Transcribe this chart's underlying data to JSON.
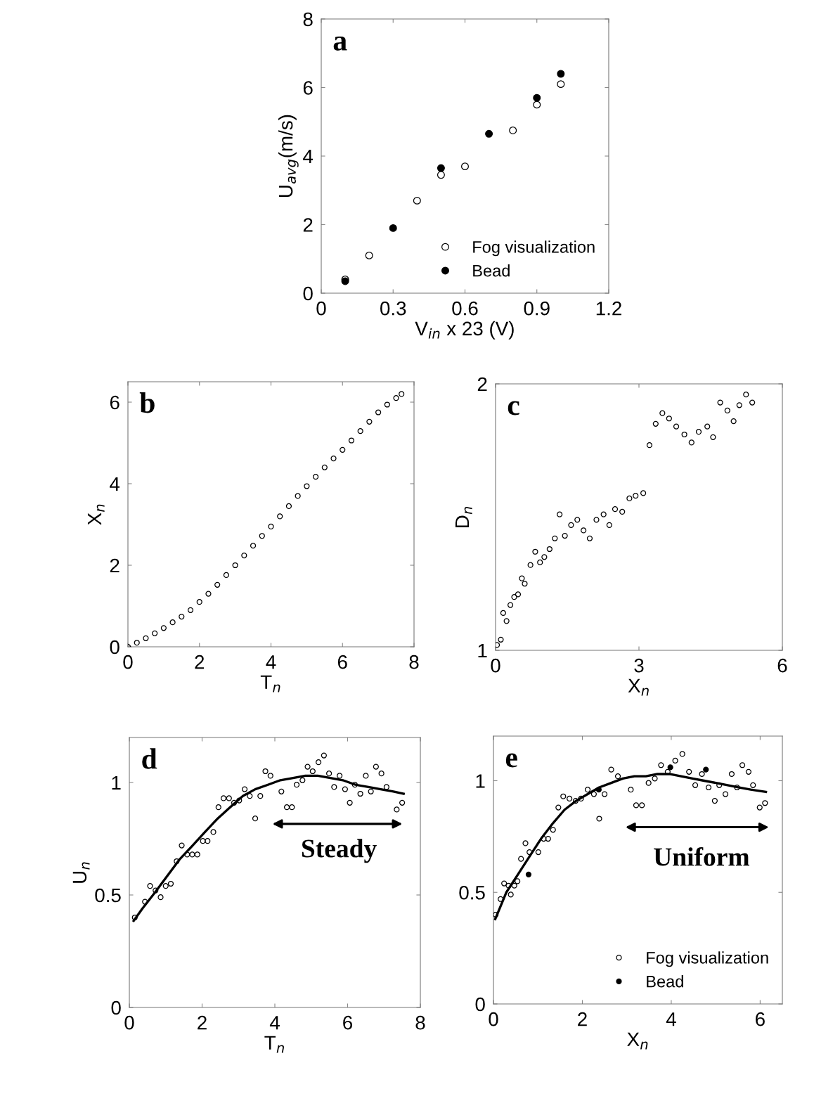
{
  "chart_data": [
    {
      "type": "scatter",
      "title": "a",
      "xlabel": "V$_{in}$ x 23 (V)",
      "ylabel": "U$_{avg}$(m/s)",
      "xlim": [
        0,
        1.2
      ],
      "ylim": [
        0,
        8
      ],
      "xticks": [
        0,
        0.3,
        0.6,
        0.9,
        1.2
      ],
      "yticks": [
        0,
        2,
        4,
        6,
        8
      ],
      "grid": false,
      "legend": "bottom right",
      "marker": "circle",
      "series": [
        {
          "name": "Fog visualization",
          "color": "#000000",
          "x": [
            0.1,
            0.2,
            0.4,
            0.5,
            0.6,
            0.8,
            0.9,
            1.0
          ],
          "values": [
            0.4,
            1.1,
            2.7,
            3.45,
            3.7,
            4.75,
            5.5,
            6.1
          ]
        },
        {
          "name": "Bead",
          "color": "#000000",
          "x": [
            0.1,
            0.3,
            0.5,
            0.7,
            0.9,
            1.0
          ],
          "values": [
            0.35,
            1.9,
            3.65,
            4.65,
            5.7,
            6.4
          ]
        }
      ]
    },
    {
      "type": "scatter",
      "title": "b",
      "xlabel": "T$_{n}$",
      "ylabel": "X$_{n}$",
      "xlim": [
        0,
        8
      ],
      "ylim": [
        0,
        6.5
      ],
      "xticks": [
        0,
        2,
        4,
        6,
        8
      ],
      "yticks": [
        0,
        2,
        4,
        6
      ],
      "grid": false,
      "marker": "circle",
      "series": [
        {
          "color": "#000000",
          "x": [
            0,
            0.25,
            0.5,
            0.75,
            1.0,
            1.25,
            1.5,
            1.75,
            2.0,
            2.25,
            2.5,
            2.75,
            3.0,
            3.25,
            3.5,
            3.75,
            4.0,
            4.25,
            4.5,
            4.75,
            5.0,
            5.25,
            5.5,
            5.75,
            6.0,
            6.25,
            6.5,
            6.75,
            7.0,
            7.25,
            7.5,
            7.65
          ],
          "values": [
            0,
            0.1,
            0.21,
            0.33,
            0.46,
            0.6,
            0.74,
            0.9,
            1.1,
            1.3,
            1.52,
            1.76,
            2.0,
            2.24,
            2.48,
            2.72,
            2.95,
            3.2,
            3.45,
            3.7,
            3.94,
            4.17,
            4.4,
            4.62,
            4.83,
            5.06,
            5.29,
            5.52,
            5.75,
            5.94,
            6.1,
            6.2
          ]
        }
      ]
    },
    {
      "type": "scatter",
      "title": "c",
      "xlabel": "X$_{n}$",
      "ylabel": "D$_{n}$",
      "xlim": [
        0,
        6
      ],
      "ylim": [
        1,
        2
      ],
      "xticks": [
        0,
        3,
        6
      ],
      "yticks": [
        1,
        2
      ],
      "grid": false,
      "marker": "circle",
      "series": [
        {
          "color": "#000000",
          "x": [
            0.03,
            0.11,
            0.16,
            0.23,
            0.31,
            0.39,
            0.47,
            0.55,
            0.61,
            0.73,
            0.83,
            0.93,
            1.02,
            1.13,
            1.24,
            1.34,
            1.45,
            1.58,
            1.71,
            1.84,
            1.97,
            2.11,
            2.26,
            2.38,
            2.5,
            2.65,
            2.8,
            2.93,
            3.09,
            3.22,
            3.35,
            3.49,
            3.63,
            3.78,
            3.95,
            4.1,
            4.25,
            4.43,
            4.55,
            4.7,
            4.85,
            4.98,
            5.1,
            5.24,
            5.37
          ],
          "values": [
            1.02,
            1.04,
            1.14,
            1.11,
            1.17,
            1.2,
            1.21,
            1.27,
            1.25,
            1.32,
            1.37,
            1.33,
            1.35,
            1.38,
            1.42,
            1.51,
            1.43,
            1.47,
            1.49,
            1.45,
            1.42,
            1.49,
            1.51,
            1.47,
            1.53,
            1.52,
            1.57,
            1.58,
            1.59,
            1.77,
            1.85,
            1.89,
            1.87,
            1.84,
            1.81,
            1.78,
            1.82,
            1.84,
            1.8,
            1.93,
            1.9,
            1.86,
            1.92,
            1.96,
            1.93
          ]
        }
      ]
    },
    {
      "type": "scatter",
      "title": "d",
      "xlabel": "T$_{n}$",
      "ylabel": "U$_{n}$",
      "xlim": [
        0,
        8
      ],
      "ylim": [
        0,
        1.2
      ],
      "xticks": [
        0,
        2,
        4,
        6,
        8
      ],
      "yticks": [
        0,
        0.5,
        1
      ],
      "grid": false,
      "marker": "circle",
      "annotations": [
        "Steady"
      ],
      "series": [
        {
          "color": "#000000",
          "x": [
            0.15,
            0.43,
            0.57,
            0.72,
            0.86,
            1.0,
            1.14,
            1.3,
            1.44,
            1.59,
            1.73,
            1.87,
            2.02,
            2.15,
            2.31,
            2.45,
            2.59,
            2.74,
            2.88,
            3.02,
            3.17,
            3.31,
            3.46,
            3.6,
            3.74,
            3.88,
            4.18,
            4.33,
            4.47,
            4.6,
            4.76,
            4.9,
            5.04,
            5.2,
            5.35,
            5.49,
            5.63,
            5.78,
            5.93,
            6.06,
            6.2,
            6.35,
            6.5,
            6.64,
            6.78,
            6.93,
            7.07,
            7.35,
            7.5
          ],
          "values": [
            0.4,
            0.47,
            0.54,
            0.52,
            0.49,
            0.54,
            0.55,
            0.65,
            0.72,
            0.68,
            0.68,
            0.68,
            0.74,
            0.74,
            0.78,
            0.89,
            0.93,
            0.93,
            0.91,
            0.92,
            0.97,
            0.94,
            0.84,
            0.94,
            1.05,
            1.03,
            0.96,
            0.89,
            0.89,
            0.99,
            1.01,
            1.07,
            1.05,
            1.09,
            1.12,
            1.04,
            0.98,
            1.03,
            0.97,
            0.91,
            0.99,
            0.95,
            1.03,
            0.96,
            1.07,
            1.04,
            0.98,
            0.88,
            0.91
          ]
        },
        {
          "type": "line",
          "color": "#000000",
          "line_style": "solid",
          "marker": "none",
          "x": [
            0.12,
            0.36,
            0.7,
            1.39,
            1.74,
            2.08,
            2.43,
            2.77,
            3.12,
            3.46,
            3.81,
            4.15,
            4.5,
            4.84,
            5.18,
            5.53,
            5.87,
            6.22,
            6.57,
            6.91,
            7.26,
            7.54
          ],
          "values": [
            0.385,
            0.44,
            0.51,
            0.66,
            0.72,
            0.78,
            0.84,
            0.89,
            0.94,
            0.97,
            0.99,
            1.01,
            1.02,
            1.03,
            1.03,
            1.02,
            1.01,
            0.99,
            0.98,
            0.97,
            0.96,
            0.95
          ]
        }
      ]
    },
    {
      "type": "scatter",
      "title": "e",
      "xlabel": "X$_{n}$",
      "xlim": [
        0,
        6.5
      ],
      "ylim": [
        0,
        1.2
      ],
      "xticks": [
        0,
        2,
        4,
        6
      ],
      "yticks": [
        0,
        0.5,
        1
      ],
      "grid": false,
      "legend": "bottom right",
      "marker": "circle",
      "annotations": [
        "Uniform"
      ],
      "series": [
        {
          "name": "Fog visualization",
          "color": "#000000",
          "x": [
            0.05,
            0.16,
            0.24,
            0.34,
            0.39,
            0.47,
            0.54,
            0.62,
            0.72,
            0.81,
            1.01,
            1.13,
            1.23,
            1.34,
            1.46,
            1.57,
            1.71,
            1.85,
            1.97,
            2.12,
            2.26,
            2.38,
            2.5,
            2.65,
            2.8,
            3.09,
            3.21,
            3.34,
            3.49,
            3.63,
            3.77,
            3.92,
            4.09,
            4.25,
            4.4,
            4.54,
            4.69,
            4.84,
            4.98,
            5.08,
            5.22,
            5.36,
            5.48,
            5.6,
            5.74,
            5.84,
            5.99,
            6.11
          ],
          "values": [
            0.4,
            0.47,
            0.54,
            0.53,
            0.49,
            0.53,
            0.55,
            0.65,
            0.72,
            0.68,
            0.68,
            0.74,
            0.74,
            0.78,
            0.88,
            0.93,
            0.92,
            0.91,
            0.92,
            0.96,
            0.94,
            0.83,
            0.94,
            1.05,
            1.02,
            0.96,
            0.89,
            0.89,
            0.99,
            1.01,
            1.07,
            1.04,
            1.09,
            1.12,
            1.04,
            0.98,
            1.03,
            0.97,
            0.91,
            0.98,
            0.94,
            1.03,
            0.97,
            1.07,
            1.04,
            0.98,
            0.88,
            0.9
          ]
        },
        {
          "name": "Bead",
          "color": "#000000",
          "x": [
            0.79,
            2.37,
            3.98,
            4.78
          ],
          "values": [
            0.58,
            0.96,
            1.06,
            1.05
          ]
        },
        {
          "type": "line",
          "color": "#000000",
          "line_style": "solid",
          "marker": "none",
          "x": [
            0.04,
            0.29,
            0.55,
            0.81,
            1.07,
            1.34,
            1.6,
            1.86,
            2.12,
            2.38,
            2.65,
            2.91,
            3.17,
            3.43,
            3.69,
            3.96,
            4.22,
            4.48,
            4.74,
            5.01,
            5.27,
            5.53,
            5.79,
            6.13
          ],
          "values": [
            0.38,
            0.5,
            0.58,
            0.66,
            0.74,
            0.81,
            0.87,
            0.91,
            0.94,
            0.97,
            0.99,
            1.01,
            1.02,
            1.02,
            1.03,
            1.03,
            1.02,
            1.01,
            1.0,
            0.99,
            0.98,
            0.97,
            0.96,
            0.95
          ]
        }
      ]
    }
  ]
}
